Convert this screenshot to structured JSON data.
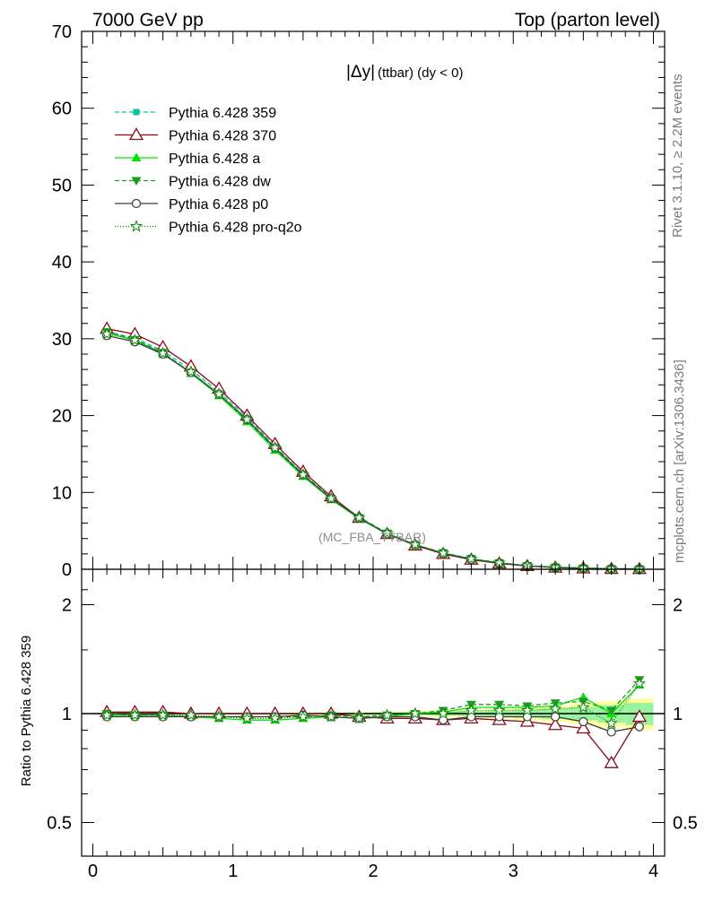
{
  "header": {
    "left_label": "7000 GeV pp",
    "right_label": "Top (parton level)"
  },
  "side_labels": {
    "rivet": "Rivet 3.1.10, ≥ 2.2M events",
    "mcplots": "mcplots.cern.ch [arXiv:1306.3436]"
  },
  "chart_data": [
    {
      "type": "line",
      "title": "|Δy| (ttbar) (dy < 0)",
      "title_main": "|Δy|",
      "title_sub": "(ttbar) (dy < 0)",
      "watermark": "(MC_FBA_TTBAR)",
      "xlabel": "",
      "ylabel": "",
      "xlim": [
        -0.08,
        4.08
      ],
      "ylim": [
        0,
        70
      ],
      "x_ticks": [
        0,
        1,
        2,
        3,
        4
      ],
      "y_ticks": [
        0,
        10,
        20,
        30,
        40,
        50,
        60,
        70
      ],
      "x": [
        0.1,
        0.3,
        0.5,
        0.7,
        0.9,
        1.1,
        1.3,
        1.5,
        1.7,
        1.9,
        2.1,
        2.3,
        2.5,
        2.7,
        2.9,
        3.1,
        3.3,
        3.5,
        3.7,
        3.9
      ],
      "legend_placement": "top-left",
      "series": [
        {
          "name": "Pythia 6.428 359",
          "color": "#00c896",
          "dash": "5,3",
          "marker": "square-filled",
          "values": [
            30.9,
            30.1,
            28.4,
            26.0,
            23.1,
            19.8,
            16.0,
            12.4,
            9.3,
            6.8,
            4.7,
            3.2,
            2.1,
            1.3,
            0.8,
            0.45,
            0.25,
            0.14,
            0.07,
            0.03
          ]
        },
        {
          "name": "Pythia 6.428 370",
          "color": "#8b0a1e",
          "dash": "",
          "marker": "triangle-open",
          "values": [
            31.3,
            30.6,
            28.9,
            26.4,
            23.5,
            20.0,
            16.3,
            12.7,
            9.5,
            6.7,
            4.6,
            3.1,
            2.0,
            1.25,
            0.76,
            0.42,
            0.22,
            0.12,
            0.05,
            0.03
          ]
        },
        {
          "name": "Pythia 6.428 a",
          "color": "#00e600",
          "dash": "",
          "marker": "triangle-filled",
          "values": [
            30.8,
            29.8,
            28.1,
            25.5,
            22.6,
            19.2,
            15.5,
            12.1,
            9.1,
            6.6,
            4.6,
            3.2,
            2.1,
            1.35,
            0.84,
            0.47,
            0.26,
            0.16,
            0.07,
            0.04
          ]
        },
        {
          "name": "Pythia 6.428 dw",
          "color": "#1e9b1e",
          "dash": "5,3",
          "marker": "triangle-down-filled",
          "values": [
            30.9,
            29.9,
            28.2,
            25.6,
            22.7,
            19.4,
            15.7,
            12.2,
            9.2,
            6.7,
            4.7,
            3.2,
            2.15,
            1.38,
            0.85,
            0.47,
            0.27,
            0.15,
            0.07,
            0.04
          ]
        },
        {
          "name": "Pythia 6.428 p0",
          "color": "#3c3c3c",
          "dash": "",
          "marker": "circle-open",
          "values": [
            30.4,
            29.6,
            28.0,
            25.6,
            22.8,
            19.5,
            15.8,
            12.3,
            9.2,
            6.7,
            4.6,
            3.2,
            2.05,
            1.28,
            0.79,
            0.44,
            0.25,
            0.13,
            0.06,
            0.03
          ]
        },
        {
          "name": "Pythia 6.428 pro-q2o",
          "color": "#148c14",
          "dash": "1,2",
          "marker": "star-open",
          "values": [
            30.6,
            29.8,
            28.1,
            25.7,
            22.8,
            19.5,
            15.8,
            12.3,
            9.2,
            6.7,
            4.7,
            3.2,
            2.1,
            1.35,
            0.83,
            0.46,
            0.26,
            0.15,
            0.07,
            0.04
          ]
        }
      ]
    },
    {
      "type": "line",
      "title": "",
      "xlabel": "",
      "ylabel": "Ratio to Pythia 6.428 359",
      "xlim": [
        -0.08,
        4.08
      ],
      "ylim": [
        0.35,
        2.3
      ],
      "y_ticks": [
        0.5,
        1,
        2
      ],
      "y_tick_labels": [
        "0.5",
        "1",
        "2"
      ],
      "x_ticks": [
        0,
        1,
        2,
        3,
        4
      ],
      "x": [
        0.1,
        0.3,
        0.5,
        0.7,
        0.9,
        1.1,
        1.3,
        1.5,
        1.7,
        1.9,
        2.1,
        2.3,
        2.5,
        2.7,
        2.9,
        3.1,
        3.3,
        3.5,
        3.7,
        3.9
      ],
      "reference_band": {
        "yellow_halfwidth": [
          0.005,
          0.005,
          0.005,
          0.005,
          0.006,
          0.006,
          0.007,
          0.008,
          0.009,
          0.01,
          0.012,
          0.015,
          0.02,
          0.025,
          0.03,
          0.04,
          0.05,
          0.065,
          0.08,
          0.1
        ],
        "green_halfwidth": [
          0.003,
          0.003,
          0.003,
          0.003,
          0.004,
          0.004,
          0.005,
          0.005,
          0.006,
          0.007,
          0.008,
          0.01,
          0.013,
          0.016,
          0.02,
          0.026,
          0.033,
          0.043,
          0.055,
          0.07
        ]
      },
      "series": [
        {
          "name": "Pythia 6.428 370",
          "color": "#8b0a1e",
          "dash": "",
          "marker": "triangle-open",
          "values": [
            1.01,
            1.01,
            1.01,
            1.0,
            1.0,
            1.0,
            1.0,
            1.0,
            1.0,
            0.98,
            0.97,
            0.97,
            0.96,
            0.97,
            0.96,
            0.95,
            0.93,
            0.91,
            0.73,
            0.98
          ]
        },
        {
          "name": "Pythia 6.428 a",
          "color": "#00e600",
          "dash": "",
          "marker": "triangle-filled",
          "values": [
            0.99,
            0.99,
            0.99,
            0.98,
            0.97,
            0.96,
            0.96,
            0.97,
            0.98,
            0.97,
            0.98,
            1.0,
            1.01,
            1.04,
            1.04,
            1.04,
            1.05,
            1.11,
            1.0,
            1.2
          ]
        },
        {
          "name": "Pythia 6.428 dw",
          "color": "#1e9b1e",
          "dash": "5,3",
          "marker": "triangle-down-filled",
          "values": [
            1.0,
            0.99,
            0.99,
            0.98,
            0.98,
            0.98,
            0.98,
            0.98,
            0.99,
            0.98,
            0.99,
            1.0,
            1.02,
            1.06,
            1.06,
            1.05,
            1.07,
            1.08,
            1.02,
            1.24
          ]
        },
        {
          "name": "Pythia 6.428 p0",
          "color": "#3c3c3c",
          "dash": "",
          "marker": "circle-open",
          "values": [
            0.98,
            0.98,
            0.98,
            0.98,
            0.98,
            0.98,
            0.98,
            0.99,
            0.98,
            0.97,
            0.98,
            0.98,
            0.96,
            0.98,
            0.98,
            0.98,
            0.98,
            0.95,
            0.89,
            0.92
          ]
        },
        {
          "name": "Pythia 6.428 pro-q2o",
          "color": "#148c14",
          "dash": "1,2",
          "marker": "star-open",
          "values": [
            0.99,
            0.99,
            0.99,
            0.99,
            0.98,
            0.97,
            0.97,
            0.98,
            0.98,
            0.97,
            0.99,
            1.0,
            1.0,
            1.02,
            1.02,
            1.02,
            1.03,
            1.04,
            0.94,
            1.21
          ]
        }
      ]
    }
  ]
}
